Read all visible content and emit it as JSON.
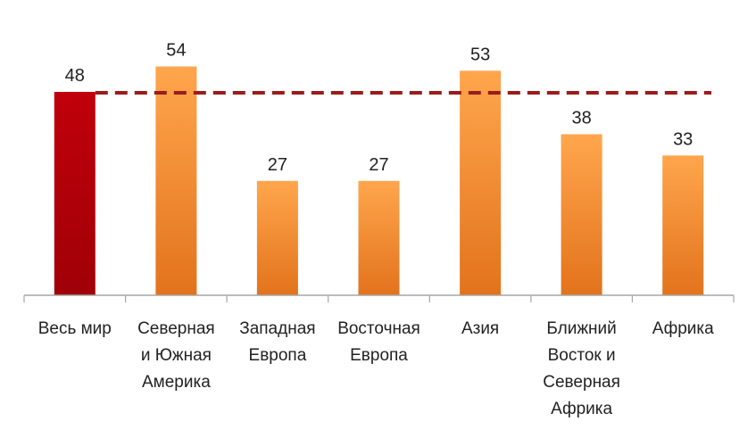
{
  "chart_data": {
    "type": "bar",
    "categories": [
      [
        "Весь мир"
      ],
      [
        "Северная",
        "и Южная",
        "Америка"
      ],
      [
        "Западная",
        "Европа"
      ],
      [
        "Восточная",
        "Европа"
      ],
      [
        "Азия"
      ],
      [
        "Ближний",
        "Восток и",
        "Северная",
        "Африка"
      ],
      [
        "Африка"
      ]
    ],
    "values": [
      48,
      54,
      27,
      27,
      53,
      38,
      33
    ],
    "ylim": [
      0,
      60
    ],
    "reference_line": {
      "value": 48,
      "style": "dashed",
      "color": "#9b1c1c"
    },
    "grid": false,
    "legend": "none",
    "colors": {
      "highlight_top": "#c0000a",
      "highlight_bottom": "#a00008",
      "bar_top": "#ffa64d",
      "bar_bottom": "#e2731c",
      "axis": "#a6a6a6"
    }
  }
}
